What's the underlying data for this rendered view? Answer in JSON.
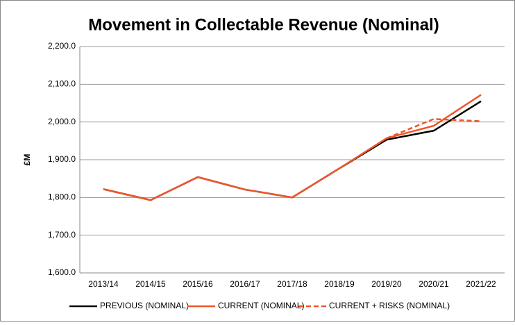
{
  "chart_data": {
    "type": "line",
    "title": "Movement in Collectable Revenue (Nominal)",
    "y_label": "£M",
    "categories": [
      "2013/14",
      "2014/15",
      "2015/16",
      "2016/17",
      "2017/18",
      "2018/19",
      "2019/20",
      "2020/21",
      "2021/22"
    ],
    "series": [
      {
        "name": "PREVIOUS (NOMINAL)",
        "color": "#000000",
        "dashed": false,
        "values": [
          1822,
          1793,
          1854,
          1821,
          1800,
          1877,
          1953,
          1977,
          2055
        ]
      },
      {
        "name": "CURRENT (NOMINAL)",
        "color": "#f0562a",
        "dashed": false,
        "values": [
          1822,
          1793,
          1854,
          1821,
          1800,
          1877,
          1957,
          1990,
          2072
        ]
      },
      {
        "name": "CURRENT + RISKS (NOMINAL)",
        "color": "#f0562a",
        "dashed": true,
        "values": [
          null,
          null,
          null,
          null,
          null,
          null,
          1957,
          2008,
          2002
        ]
      }
    ],
    "ylim": [
      1600,
      2200
    ],
    "yticks": [
      {
        "value": 1600,
        "label": "1,600.0"
      },
      {
        "value": 1700,
        "label": "1,700.0"
      },
      {
        "value": 1800,
        "label": "1,800.0"
      },
      {
        "value": 1900,
        "label": "1,900.0"
      },
      {
        "value": 2000,
        "label": "2,000.0"
      },
      {
        "value": 2100,
        "label": "2,100.0"
      },
      {
        "value": 2200,
        "label": "2,200.0"
      }
    ],
    "grid": true,
    "legend": "bottom"
  }
}
